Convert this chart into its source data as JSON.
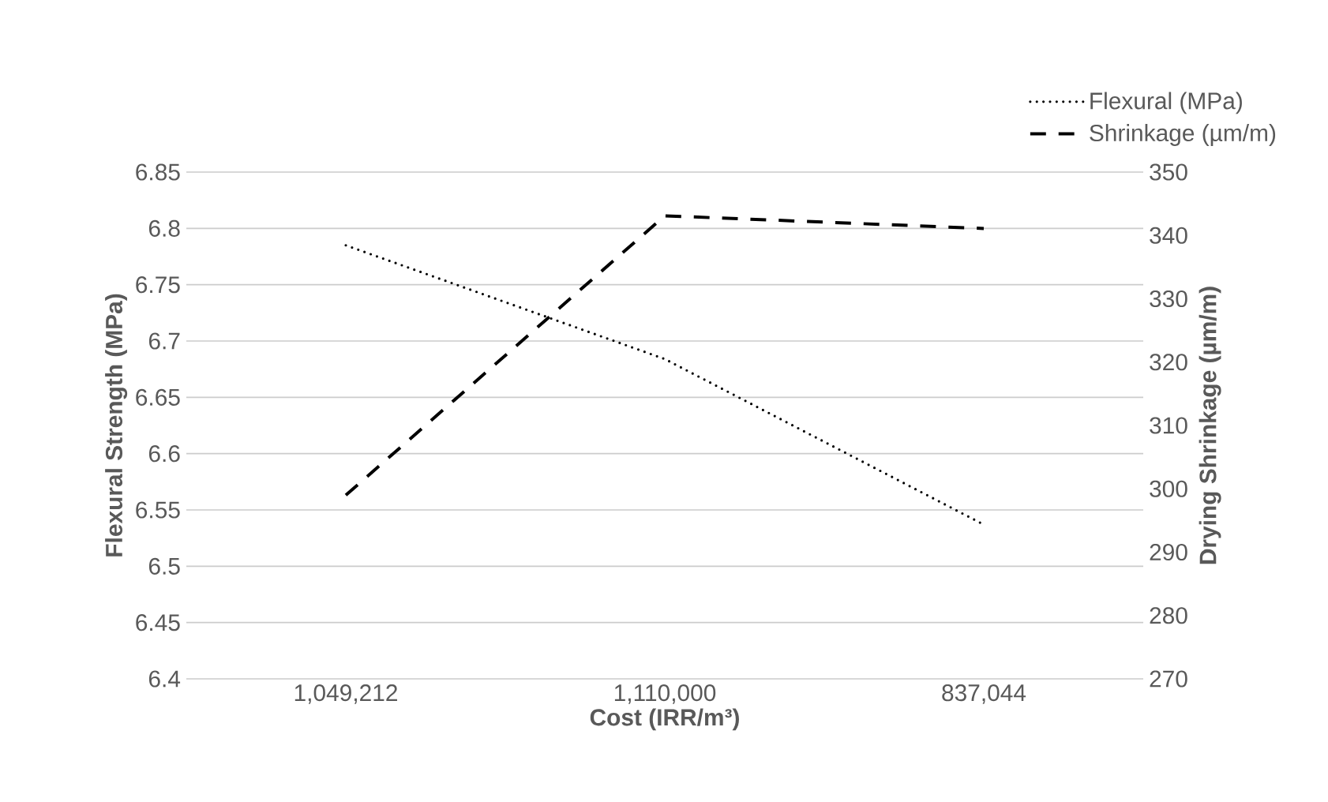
{
  "chart_data": {
    "type": "line",
    "xlabel": "Cost (IRR/m³)",
    "ylabel": "Flexural Strength (MPa)",
    "y2label": "Drying Shrinkage (µm/m)",
    "categories": [
      "1,049,212",
      "1,110,000",
      "837,044"
    ],
    "series": [
      {
        "name": "Flexural (MPa)",
        "color": "#000000",
        "line_style": "dotted",
        "values": [
          6.785,
          6.684,
          6.537
        ]
      },
      {
        "name": "Shrinkage (µm/m)",
        "color": "#000000",
        "line_style": "dashed",
        "axis": "y2",
        "values": [
          299,
          343.1,
          341.1
        ]
      }
    ],
    "ylim": [
      6.4,
      6.85
    ],
    "yticks": [
      6.4,
      6.45,
      6.5,
      6.55,
      6.6,
      6.65,
      6.7,
      6.75,
      6.8,
      6.85
    ],
    "y2lim": [
      270,
      350
    ],
    "y2ticks": [
      270,
      280,
      290,
      300,
      310,
      320,
      330,
      340,
      350
    ],
    "grid": "y",
    "legend": "top right",
    "marker": "none"
  }
}
